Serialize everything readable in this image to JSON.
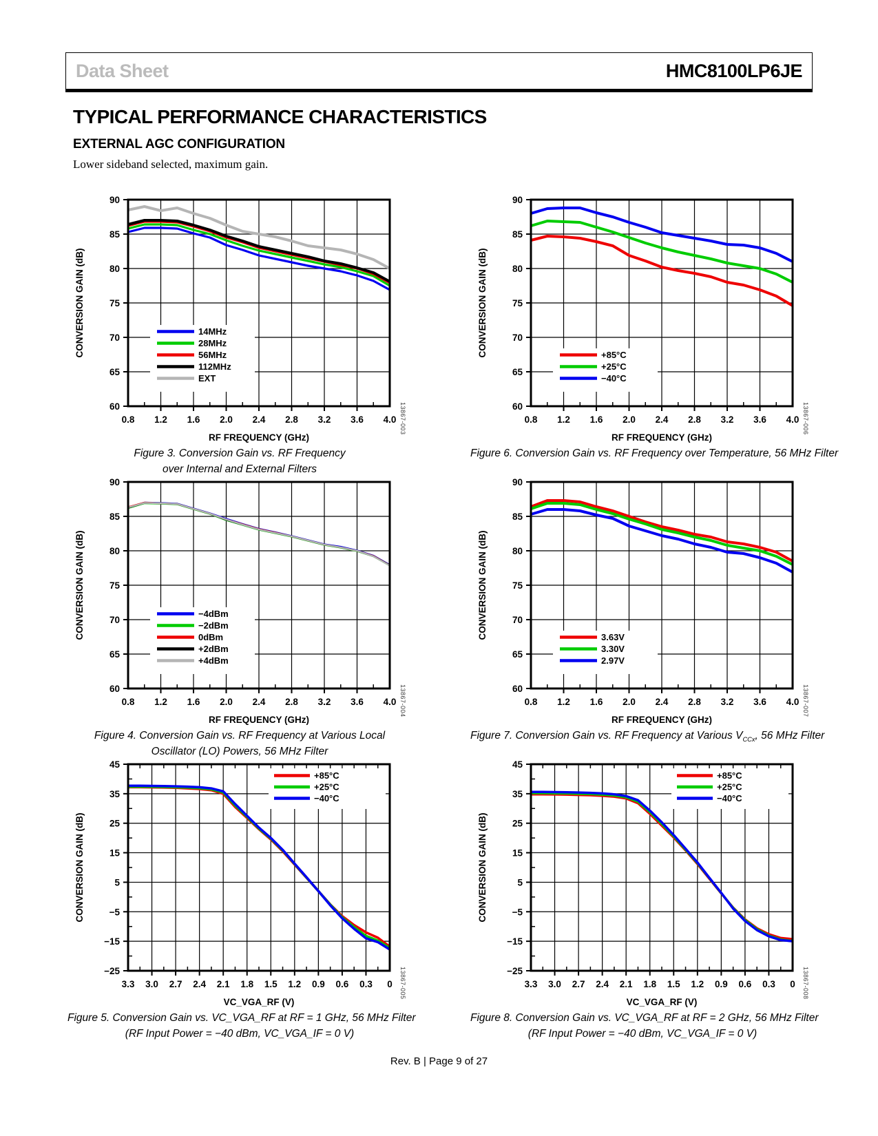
{
  "header": {
    "doc_type": "Data Sheet",
    "part_number": "HMC8100LP6JE"
  },
  "page": {
    "section_title": "TYPICAL PERFORMANCE CHARACTERISTICS",
    "subsection_title": "EXTERNAL AGC CONFIGURATION",
    "intro_text": "Lower sideband selected, maximum gain.",
    "footer_text": "Rev. B | Page 9 of 27"
  },
  "colors": {
    "blue": "#0000F0",
    "green": "#00CC00",
    "red": "#EE0000",
    "black": "#000000",
    "gray": "#B5B5B5"
  },
  "chart_data": [
    {
      "id": "figure-3",
      "type": "line",
      "code": "13867-003",
      "xlabel": "RF FREQUENCY (GHz)",
      "ylabel": "CONVERSION GAIN (dB)",
      "xlim": [
        0.8,
        4.0
      ],
      "ylim": [
        60,
        90
      ],
      "xticks": [
        0.8,
        1.2,
        1.6,
        2.0,
        2.4,
        2.8,
        3.2,
        3.6,
        4.0
      ],
      "xtick_labels": [
        "0.8",
        "1.2",
        "1.6",
        "2.0",
        "2.4",
        "2.8",
        "3.2",
        "3.6",
        "4.0"
      ],
      "yticks": [
        60,
        65,
        70,
        75,
        80,
        85,
        90
      ],
      "ytick_labels": [
        "60",
        "65",
        "70",
        "75",
        "80",
        "85",
        "90"
      ],
      "x_minor_step": 0.2,
      "y_minor_step": null,
      "minor_top": false,
      "legend_pos": "bottom-left",
      "line_width": 3.2,
      "x": [
        0.8,
        1.0,
        1.2,
        1.4,
        1.6,
        1.8,
        2.0,
        2.2,
        2.4,
        2.6,
        2.8,
        3.0,
        3.2,
        3.4,
        3.6,
        3.8,
        4.0
      ],
      "series": [
        {
          "name": "14MHz",
          "color": "#0000F0",
          "width": 3.2,
          "values": [
            85.3,
            85.9,
            85.9,
            85.8,
            85.1,
            84.5,
            83.4,
            82.7,
            81.9,
            81.4,
            80.9,
            80.4,
            80.0,
            79.6,
            79.0,
            78.2,
            76.9
          ]
        },
        {
          "name": "28MHz",
          "color": "#00CC00",
          "width": 3.2,
          "values": [
            85.8,
            86.4,
            86.4,
            86.3,
            85.6,
            85.0,
            84.1,
            83.3,
            82.6,
            82.1,
            81.6,
            81.1,
            80.6,
            80.2,
            79.6,
            78.9,
            77.5
          ]
        },
        {
          "name": "56MHz",
          "color": "#EE0000",
          "width": 3.2,
          "values": [
            86.2,
            86.8,
            86.8,
            86.7,
            86.1,
            85.4,
            84.5,
            83.8,
            83.0,
            82.5,
            82.0,
            81.5,
            81.0,
            80.5,
            80.0,
            79.2,
            77.9
          ]
        },
        {
          "name": "112MHz",
          "color": "#000000",
          "width": 4,
          "values": [
            86.4,
            87.0,
            87.0,
            86.9,
            86.3,
            85.6,
            84.7,
            84.0,
            83.2,
            82.7,
            82.2,
            81.7,
            81.1,
            80.7,
            80.1,
            79.4,
            78.1
          ]
        },
        {
          "name": "EXT",
          "color": "#B5B5B5",
          "width": 4,
          "values": [
            88.5,
            89.0,
            88.4,
            88.8,
            88.0,
            87.3,
            86.3,
            85.4,
            85.0,
            84.6,
            84.0,
            83.3,
            83.0,
            82.7,
            82.1,
            81.3,
            80.0
          ]
        }
      ],
      "caption": [
        [
          {
            "text": "Figure 3. Conversion Gain vs. RF Frequency"
          }
        ],
        [
          {
            "text": "over Internal and External Filters"
          }
        ]
      ]
    },
    {
      "id": "figure-6",
      "type": "line",
      "code": "13867-006",
      "xlabel": "RF FREQUENCY (GHz)",
      "ylabel": "CONVERSION GAIN (dB)",
      "xlim": [
        0.8,
        4.0
      ],
      "ylim": [
        60,
        90
      ],
      "xticks": [
        0.8,
        1.2,
        1.6,
        2.0,
        2.4,
        2.8,
        3.2,
        3.6,
        4.0
      ],
      "xtick_labels": [
        "0.8",
        "1.2",
        "1.6",
        "2.0",
        "2.4",
        "2.8",
        "3.2",
        "3.6",
        "4.0"
      ],
      "yticks": [
        60,
        65,
        70,
        75,
        80,
        85,
        90
      ],
      "ytick_labels": [
        "60",
        "65",
        "70",
        "75",
        "80",
        "85",
        "90"
      ],
      "x_minor_step": 0.2,
      "y_minor_step": null,
      "minor_top": false,
      "legend_pos": "bottom-left",
      "line_width": 4,
      "x": [
        0.8,
        1.0,
        1.2,
        1.4,
        1.6,
        1.8,
        2.0,
        2.2,
        2.4,
        2.6,
        2.8,
        3.0,
        3.2,
        3.4,
        3.6,
        3.8,
        4.0
      ],
      "series": [
        {
          "name": "+85°C",
          "color": "#EE0000",
          "values": [
            84.1,
            84.7,
            84.6,
            84.4,
            83.9,
            83.3,
            81.9,
            81.1,
            80.2,
            79.7,
            79.3,
            78.8,
            78.0,
            77.6,
            76.9,
            76.0,
            74.6
          ]
        },
        {
          "name": "+25°C",
          "color": "#00CC00",
          "values": [
            86.2,
            86.9,
            86.8,
            86.7,
            86.0,
            85.3,
            84.5,
            83.7,
            83.0,
            82.4,
            81.9,
            81.4,
            80.8,
            80.4,
            80.0,
            79.2,
            78.0
          ]
        },
        {
          "name": "−40°C",
          "color": "#0000F0",
          "values": [
            88.0,
            88.7,
            88.8,
            88.8,
            88.1,
            87.5,
            86.7,
            86.0,
            85.2,
            84.8,
            84.4,
            84.0,
            83.5,
            83.4,
            83.0,
            82.2,
            81.0
          ]
        }
      ],
      "caption": [
        [
          {
            "text": "Figure 6. Conversion Gain vs. RF Frequency over Temperature, 56 MHz Filter"
          }
        ]
      ]
    },
    {
      "id": "figure-4",
      "type": "line",
      "code": "13867-004",
      "xlabel": "RF FREQUENCY (GHz)",
      "ylabel": "CONVERSION GAIN (dB)",
      "xlim": [
        0.8,
        4.0
      ],
      "ylim": [
        60,
        90
      ],
      "xticks": [
        0.8,
        1.2,
        1.6,
        2.0,
        2.4,
        2.8,
        3.2,
        3.6,
        4.0
      ],
      "xtick_labels": [
        "0.8",
        "1.2",
        "1.6",
        "2.0",
        "2.4",
        "2.8",
        "3.2",
        "3.6",
        "4.0"
      ],
      "yticks": [
        60,
        65,
        70,
        75,
        80,
        85,
        90
      ],
      "ytick_labels": [
        "60",
        "65",
        "70",
        "75",
        "80",
        "85",
        "90"
      ],
      "x_minor_step": 0.2,
      "y_minor_step": null,
      "minor_top": false,
      "legend_pos": "bottom-left",
      "line_width": 2.4,
      "x": [
        0.8,
        1.0,
        1.2,
        1.4,
        1.6,
        1.8,
        2.0,
        2.2,
        2.4,
        2.6,
        2.8,
        3.0,
        3.2,
        3.4,
        3.6,
        3.8,
        4.0
      ],
      "series": [
        {
          "name": "−4dBm",
          "color": "#0000F0",
          "values": [
            86.3,
            87.0,
            86.95,
            86.85,
            86.15,
            85.45,
            84.65,
            83.9,
            83.2,
            82.7,
            82.15,
            81.55,
            80.95,
            80.6,
            80.05,
            79.3,
            77.95
          ]
        },
        {
          "name": "−2dBm",
          "color": "#00CC00",
          "values": [
            86.2,
            86.9,
            86.85,
            86.75,
            86.05,
            85.35,
            84.45,
            83.75,
            83.05,
            82.55,
            82.05,
            81.45,
            80.85,
            80.45,
            79.95,
            79.2,
            77.85
          ]
        },
        {
          "name": "0dBm",
          "color": "#EE0000",
          "values": [
            86.35,
            87.0,
            86.9,
            86.8,
            86.1,
            85.4,
            84.55,
            83.85,
            83.15,
            82.65,
            82.1,
            81.5,
            80.9,
            80.5,
            80.0,
            79.25,
            77.9
          ]
        },
        {
          "name": "+2dBm",
          "color": "#000000",
          "values": [
            86.25,
            86.95,
            86.9,
            86.8,
            86.1,
            85.4,
            84.5,
            83.8,
            83.1,
            82.6,
            82.1,
            81.5,
            80.9,
            80.5,
            80.0,
            79.2,
            77.9
          ]
        },
        {
          "name": "+4dBm",
          "color": "#B5B5B5",
          "values": [
            86.3,
            86.95,
            86.9,
            86.8,
            86.1,
            85.4,
            84.55,
            83.8,
            83.1,
            82.6,
            82.1,
            81.5,
            80.9,
            80.5,
            80.0,
            79.2,
            77.85
          ]
        }
      ],
      "caption": [
        [
          {
            "text": "Figure 4. Conversion Gain vs. RF Frequency at Various Local"
          }
        ],
        [
          {
            "text": "Oscillator (LO) Powers, 56 MHz Filter"
          }
        ]
      ]
    },
    {
      "id": "figure-7",
      "type": "line",
      "code": "13867-007",
      "xlabel": "RF FREQUENCY (GHz)",
      "ylabel": "CONVERSION GAIN (dB)",
      "xlim": [
        0.8,
        4.0
      ],
      "ylim": [
        60,
        90
      ],
      "xticks": [
        0.8,
        1.2,
        1.6,
        2.0,
        2.4,
        2.8,
        3.2,
        3.6,
        4.0
      ],
      "xtick_labels": [
        "0.8",
        "1.2",
        "1.6",
        "2.0",
        "2.4",
        "2.8",
        "3.2",
        "3.6",
        "4.0"
      ],
      "yticks": [
        60,
        65,
        70,
        75,
        80,
        85,
        90
      ],
      "ytick_labels": [
        "60",
        "65",
        "70",
        "75",
        "80",
        "85",
        "90"
      ],
      "x_minor_step": 0.2,
      "y_minor_step": null,
      "minor_top": false,
      "legend_pos": "bottom-left",
      "line_width": 4,
      "x": [
        0.8,
        1.0,
        1.2,
        1.4,
        1.6,
        1.8,
        2.0,
        2.2,
        2.4,
        2.6,
        2.8,
        3.0,
        3.2,
        3.4,
        3.6,
        3.8,
        4.0
      ],
      "series": [
        {
          "name": "3.63V",
          "color": "#EE0000",
          "values": [
            86.4,
            87.3,
            87.3,
            87.1,
            86.4,
            85.8,
            85.0,
            84.2,
            83.5,
            83.0,
            82.4,
            82.0,
            81.3,
            81.0,
            80.5,
            79.8,
            78.5
          ]
        },
        {
          "name": "3.30V",
          "color": "#00CC00",
          "values": [
            86.1,
            86.9,
            86.9,
            86.7,
            86.0,
            85.4,
            84.6,
            83.9,
            83.1,
            82.6,
            82.0,
            81.5,
            80.8,
            80.4,
            80.0,
            79.2,
            78.0
          ]
        },
        {
          "name": "2.97V",
          "color": "#0000F0",
          "values": [
            85.3,
            86.0,
            86.0,
            85.8,
            85.2,
            84.7,
            83.6,
            82.9,
            82.2,
            81.7,
            81.0,
            80.5,
            79.8,
            79.6,
            79.0,
            78.2,
            76.9
          ]
        }
      ],
      "caption": [
        [
          {
            "text": "Figure 7. Conversion Gain vs. RF Frequency at Various V"
          },
          {
            "text": "CCx",
            "sub": true
          },
          {
            "text": ", 56 MHz Filter"
          }
        ]
      ]
    },
    {
      "id": "figure-5",
      "type": "line",
      "code": "13867-005",
      "xlabel": "VC_VGA_RF (V)",
      "ylabel": "CONVERSION GAIN (dB)",
      "xlim": [
        3.3,
        0
      ],
      "ylim": [
        -25,
        45
      ],
      "xticks": [
        3.3,
        3.0,
        2.7,
        2.4,
        2.1,
        1.8,
        1.5,
        1.2,
        0.9,
        0.6,
        0.3,
        0
      ],
      "xtick_labels": [
        "3.3",
        "3.0",
        "2.7",
        "2.4",
        "2.1",
        "1.8",
        "1.5",
        "1.2",
        "0.9",
        "0.6",
        "0.3",
        "0"
      ],
      "yticks": [
        -25,
        -15,
        -5,
        5,
        15,
        25,
        35,
        45
      ],
      "ytick_labels": [
        "−25",
        "−15",
        "−5",
        "5",
        "15",
        "25",
        "35",
        "45"
      ],
      "x_minor_step": 0.15,
      "y_minor_step": 5,
      "minor_top": true,
      "legend_pos": "top-right",
      "line_width": 3.5,
      "x": [
        3.3,
        3.15,
        3.0,
        2.85,
        2.7,
        2.55,
        2.4,
        2.25,
        2.1,
        1.95,
        1.8,
        1.65,
        1.5,
        1.35,
        1.2,
        1.05,
        0.9,
        0.75,
        0.6,
        0.45,
        0.3,
        0.15,
        0
      ],
      "series": [
        {
          "name": "+85°C",
          "color": "#EE0000",
          "values": [
            37.2,
            37.2,
            37.15,
            37.1,
            37.0,
            36.8,
            36.6,
            36.2,
            35.0,
            30.5,
            26.8,
            23.0,
            19.5,
            15.5,
            11.0,
            6.5,
            2.0,
            -2.5,
            -6.5,
            -9.5,
            -12.0,
            -13.8,
            -16.8
          ]
        },
        {
          "name": "+25°C",
          "color": "#00CC00",
          "values": [
            37.4,
            37.4,
            37.35,
            37.3,
            37.2,
            37.1,
            36.9,
            36.5,
            35.4,
            31.0,
            27.2,
            23.2,
            19.8,
            15.8,
            11.2,
            6.6,
            2.0,
            -2.6,
            -6.9,
            -10.2,
            -13.2,
            -14.8,
            -17.3
          ]
        },
        {
          "name": "−40°C",
          "color": "#0000F0",
          "values": [
            37.7,
            37.7,
            37.65,
            37.6,
            37.5,
            37.4,
            37.2,
            36.8,
            35.8,
            31.5,
            27.5,
            23.5,
            20.0,
            16.0,
            11.3,
            6.7,
            2.0,
            -2.8,
            -7.2,
            -10.8,
            -14.0,
            -15.3,
            -17.8
          ]
        }
      ],
      "caption": [
        [
          {
            "text": "Figure 5. Conversion Gain vs. VC_VGA_RF at RF = 1 GHz, 56 MHz Filter"
          }
        ],
        [
          {
            "text": "(RF Input Power = −40 dBm, VC_VGA_IF = 0 V)"
          }
        ]
      ]
    },
    {
      "id": "figure-8",
      "type": "line",
      "code": "13867-008",
      "xlabel": "VC_VGA_RF (V)",
      "ylabel": "CONVERSION GAIN (dB)",
      "xlim": [
        3.3,
        0
      ],
      "ylim": [
        -25,
        45
      ],
      "xticks": [
        3.3,
        3.0,
        2.7,
        2.4,
        2.1,
        1.8,
        1.5,
        1.2,
        0.9,
        0.6,
        0.3,
        0
      ],
      "xtick_labels": [
        "3.3",
        "3.0",
        "2.7",
        "2.4",
        "2.1",
        "1.8",
        "1.5",
        "1.2",
        "0.9",
        "0.6",
        "0.3",
        "0"
      ],
      "yticks": [
        -25,
        -15,
        -5,
        5,
        15,
        25,
        35,
        45
      ],
      "ytick_labels": [
        "−25",
        "−15",
        "−5",
        "5",
        "15",
        "25",
        "35",
        "45"
      ],
      "x_minor_step": 0.15,
      "y_minor_step": 5,
      "minor_top": true,
      "legend_pos": "top-right",
      "line_width": 3.5,
      "x": [
        3.3,
        3.15,
        3.0,
        2.85,
        2.7,
        2.55,
        2.4,
        2.25,
        2.1,
        1.95,
        1.8,
        1.65,
        1.5,
        1.35,
        1.2,
        1.05,
        0.9,
        0.75,
        0.6,
        0.45,
        0.3,
        0.15,
        0
      ],
      "series": [
        {
          "name": "+85°C",
          "color": "#EE0000",
          "values": [
            34.8,
            34.8,
            34.75,
            34.7,
            34.6,
            34.5,
            34.3,
            34.0,
            33.4,
            31.8,
            28.2,
            24.2,
            20.2,
            15.8,
            11.2,
            6.2,
            1.2,
            -3.6,
            -7.6,
            -10.6,
            -12.6,
            -13.9,
            -14.3
          ]
        },
        {
          "name": "+25°C",
          "color": "#00CC00",
          "values": [
            35.2,
            35.2,
            35.15,
            35.1,
            35.0,
            34.9,
            34.7,
            34.4,
            33.8,
            32.3,
            28.8,
            24.8,
            20.6,
            16.1,
            11.5,
            6.4,
            1.3,
            -3.7,
            -7.8,
            -10.9,
            -13.1,
            -14.4,
            -14.9
          ]
        },
        {
          "name": "−40°C",
          "color": "#0000F0",
          "values": [
            35.6,
            35.6,
            35.55,
            35.5,
            35.4,
            35.3,
            35.1,
            34.8,
            34.2,
            32.8,
            29.3,
            25.3,
            21.0,
            16.4,
            11.7,
            6.5,
            1.4,
            -3.9,
            -8.1,
            -11.2,
            -13.3,
            -14.6,
            -15.0
          ]
        }
      ],
      "caption": [
        [
          {
            "text": "Figure 8. Conversion Gain vs. VC_VGA_RF at RF = 2 GHz, 56 MHz Filter"
          }
        ],
        [
          {
            "text": "(RF Input Power = −40 dBm, VC_VGA_IF = 0 V)"
          }
        ]
      ]
    }
  ]
}
